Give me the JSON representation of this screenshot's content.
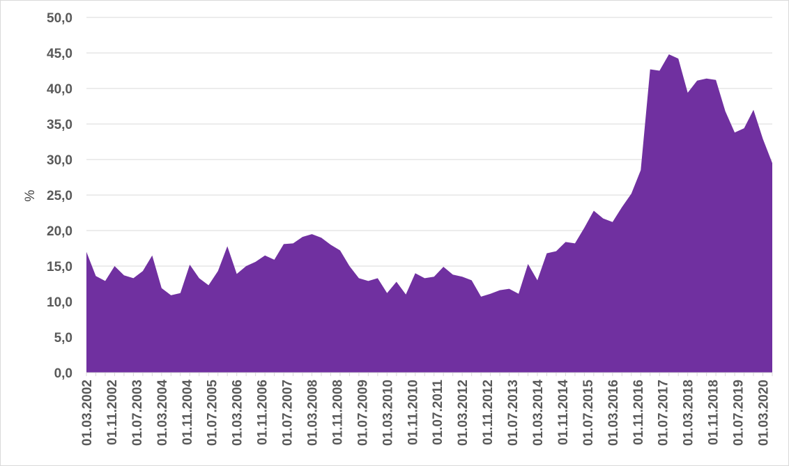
{
  "chart_data": {
    "type": "area",
    "title": "",
    "xlabel": "",
    "ylabel": "%",
    "ylim": [
      0,
      50
    ],
    "y_ticks": [
      "0,0",
      "5,0",
      "10,0",
      "15,0",
      "20,0",
      "25,0",
      "30,0",
      "35,0",
      "40,0",
      "45,0",
      "50,0"
    ],
    "grid": true,
    "legend": "none",
    "fill_color": "#7030A0",
    "x_start": "01.03.2002",
    "x_step_months": 3,
    "x_labels": [
      "01.03.2002",
      "01.11.2002",
      "01.07.2003",
      "01.03.2004",
      "01.11.2004",
      "01.07.2005",
      "01.03.2006",
      "01.11.2006",
      "01.07.2007",
      "01.03.2008",
      "01.11.2008",
      "01.07.2009",
      "01.03.2010",
      "01.11.2010",
      "01.07.2011",
      "01.03.2012",
      "01.11.2012",
      "01.07.2013",
      "01.03.2014",
      "01.11.2014",
      "01.07.2015",
      "01.03.2016",
      "01.11.2016",
      "01.07.2017",
      "01.03.2018",
      "01.11.2018",
      "01.07.2019",
      "01.03.2020"
    ],
    "values": [
      17.0,
      13.6,
      12.9,
      15.0,
      13.7,
      13.3,
      14.3,
      16.5,
      11.9,
      10.9,
      11.2,
      15.2,
      13.3,
      12.3,
      14.3,
      17.8,
      13.9,
      15.0,
      15.6,
      16.5,
      15.9,
      18.1,
      18.2,
      19.1,
      19.5,
      19.0,
      18.0,
      17.2,
      15.0,
      13.3,
      12.9,
      13.3,
      11.2,
      12.8,
      11.0,
      14.0,
      13.3,
      13.5,
      14.9,
      13.8,
      13.5,
      13.0,
      10.7,
      11.1,
      11.6,
      11.8,
      11.1,
      15.3,
      13.0,
      16.8,
      17.1,
      18.4,
      18.2,
      20.4,
      22.8,
      21.7,
      21.2,
      23.3,
      25.2,
      28.5,
      42.7,
      42.5,
      44.8,
      44.2,
      39.4,
      41.1,
      41.4,
      41.2,
      36.8,
      33.8,
      34.4,
      37.0,
      32.9,
      29.5
    ]
  }
}
